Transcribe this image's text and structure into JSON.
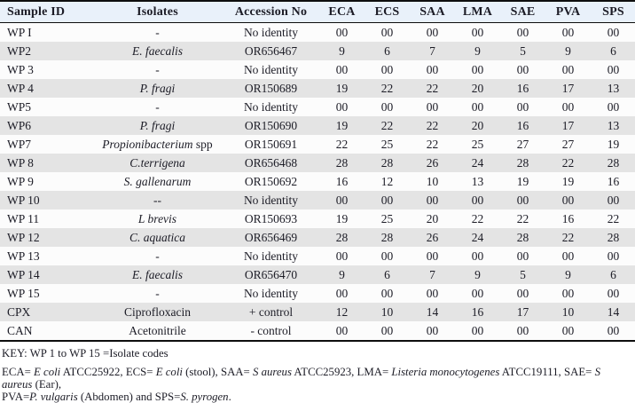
{
  "colors": {
    "header_bg": "#e9f1fa",
    "row_bg": "#fcfcfc",
    "row_alt_bg": "#e4e4e4",
    "border": "#0e0e0e",
    "text": "#1c1c26"
  },
  "table": {
    "columns": [
      "Sample ID",
      "Isolates",
      "Accession No",
      "ECA",
      "ECS",
      "SAA",
      "LMA",
      "SAE",
      "PVA",
      "SPS"
    ],
    "rows": [
      {
        "sample_id": "WP I",
        "isolate": "-",
        "isolate_italic": false,
        "isolate_suffix": "",
        "accession": "No identity",
        "values": [
          "00",
          "00",
          "00",
          "00",
          "00",
          "00",
          "00"
        ]
      },
      {
        "sample_id": "WP2",
        "isolate": "E. faecalis",
        "isolate_italic": true,
        "isolate_suffix": "",
        "accession": "OR656467",
        "values": [
          "9",
          "6",
          "7",
          "9",
          "5",
          "9",
          "6"
        ]
      },
      {
        "sample_id": "WP 3",
        "isolate": "-",
        "isolate_italic": false,
        "isolate_suffix": "",
        "accession": "No identity",
        "values": [
          "00",
          "00",
          "00",
          "00",
          "00",
          "00",
          "00"
        ]
      },
      {
        "sample_id": "WP 4",
        "isolate": "P.  fragi",
        "isolate_italic": true,
        "isolate_suffix": "",
        "accession": "OR150689",
        "values": [
          "19",
          "22",
          "22",
          "20",
          "16",
          "17",
          "13"
        ]
      },
      {
        "sample_id": "WP5",
        "isolate": "-",
        "isolate_italic": false,
        "isolate_suffix": "",
        "accession": "No identity",
        "values": [
          "00",
          "00",
          "00",
          "00",
          "00",
          "00",
          "00"
        ]
      },
      {
        "sample_id": "WP6",
        "isolate": "P. fragi",
        "isolate_italic": true,
        "isolate_suffix": "",
        "accession": "OR150690",
        "values": [
          "19",
          "22",
          "22",
          "20",
          "16",
          "17",
          "13"
        ]
      },
      {
        "sample_id": "WP7",
        "isolate": "Propionibacterium",
        "isolate_italic": true,
        "isolate_suffix": " spp",
        "accession": "OR150691",
        "values": [
          "22",
          "25",
          "22",
          "25",
          "27",
          "27",
          "19"
        ]
      },
      {
        "sample_id": "WP 8",
        "isolate": "C.terrigena",
        "isolate_italic": true,
        "isolate_suffix": "",
        "accession": "OR656468",
        "values": [
          "28",
          "28",
          "26",
          "24",
          "28",
          "22",
          "28"
        ]
      },
      {
        "sample_id": "WP 9",
        "isolate": "S. gallenarum",
        "isolate_italic": true,
        "isolate_suffix": "",
        "accession": "OR150692",
        "values": [
          "16",
          "12",
          "10",
          "13",
          "19",
          "19",
          "16"
        ]
      },
      {
        "sample_id": "WP 10",
        "isolate": "--",
        "isolate_italic": false,
        "isolate_suffix": "",
        "accession": "No identity",
        "values": [
          "00",
          "00",
          "00",
          "00",
          "00",
          "00",
          "00"
        ]
      },
      {
        "sample_id": "WP 11",
        "isolate": "L brevis",
        "isolate_italic": true,
        "isolate_suffix": "",
        "accession": "OR150693",
        "values": [
          "19",
          "25",
          "20",
          "22",
          "22",
          "16",
          "22"
        ]
      },
      {
        "sample_id": "WP 12",
        "isolate": "C. aquatica",
        "isolate_italic": true,
        "isolate_suffix": "",
        "accession": "OR656469",
        "values": [
          "28",
          "28",
          "26",
          "24",
          "28",
          "22",
          "28"
        ]
      },
      {
        "sample_id": "WP 13",
        "isolate": "-",
        "isolate_italic": false,
        "isolate_suffix": "",
        "accession": "No identity",
        "values": [
          "00",
          "00",
          "00",
          "00",
          "00",
          "00",
          "00"
        ]
      },
      {
        "sample_id": "WP 14",
        "isolate": "E. faecalis",
        "isolate_italic": true,
        "isolate_suffix": "",
        "accession": "OR656470",
        "values": [
          "9",
          "6",
          "7",
          "9",
          "5",
          "9",
          "6"
        ]
      },
      {
        "sample_id": "WP 15",
        "isolate": "-",
        "isolate_italic": false,
        "isolate_suffix": "",
        "accession": "No identity",
        "values": [
          "00",
          "00",
          "00",
          "00",
          "00",
          "00",
          "00"
        ]
      },
      {
        "sample_id": "CPX",
        "isolate": "Ciprofloxacin",
        "isolate_italic": false,
        "isolate_suffix": "",
        "accession": "+ control",
        "values": [
          "12",
          "10",
          "14",
          "16",
          "17",
          "10",
          "14"
        ]
      },
      {
        "sample_id": "CAN",
        "isolate": "Acetonitrile",
        "isolate_italic": false,
        "isolate_suffix": "",
        "accession": "- control",
        "values": [
          "00",
          "00",
          "00",
          "00",
          "00",
          "00",
          "00"
        ]
      }
    ]
  },
  "footnotes": {
    "key": "KEY: WP 1 to WP 15 =Isolate codes",
    "abbr_line1": [
      {
        "t": "ECA= ",
        "i": false
      },
      {
        "t": "E coli",
        "i": true
      },
      {
        "t": " ATCC25922, ECS= ",
        "i": false
      },
      {
        "t": "E coli",
        "i": true
      },
      {
        "t": " (stool), SAA= ",
        "i": false
      },
      {
        "t": "S aureus",
        "i": true
      },
      {
        "t": " ATCC25923, LMA= ",
        "i": false
      },
      {
        "t": "Listeria monocytogenes",
        "i": true
      },
      {
        "t": " ATCC19111, SAE= ",
        "i": false
      },
      {
        "t": "S aureus",
        "i": true
      },
      {
        "t": " (Ear),",
        "i": false
      }
    ],
    "abbr_line2": [
      {
        "t": "PVA=",
        "i": false
      },
      {
        "t": "P. vulgaris",
        "i": true
      },
      {
        "t": " (Abdomen) and SPS=",
        "i": false
      },
      {
        "t": "S. pyrogen",
        "i": true
      },
      {
        "t": ".",
        "i": false
      }
    ]
  }
}
